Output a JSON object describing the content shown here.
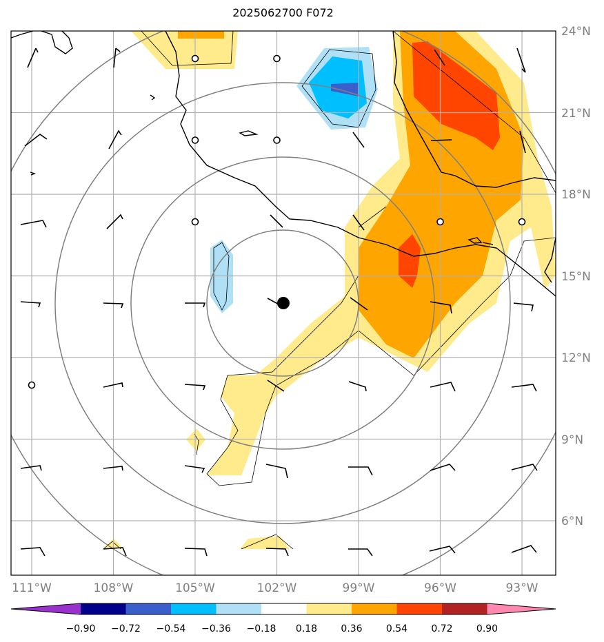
{
  "title": "2025062700 F072",
  "lat_labels": [
    "24°N",
    "21°N",
    "18°N",
    "15°N",
    "12°N",
    "9°N",
    "6°N"
  ],
  "lon_labels": [
    "111°W",
    "108°W",
    "105°W",
    "102°W",
    "99°W",
    "96°W",
    "93°W"
  ],
  "colorbar": {
    "ticks": [
      "−0.90",
      "−0.72",
      "−0.54",
      "−0.36",
      "−0.18",
      "0.18",
      "0.36",
      "0.54",
      "0.72",
      "0.90"
    ],
    "colors": [
      "#9932cc",
      "#00008b",
      "#3a5fcd",
      "#00bfff",
      "#b0e0f5",
      "#ffffff",
      "#ffeb8c",
      "#ffa500",
      "#ff4500",
      "#b22222",
      "#ff88b0"
    ]
  },
  "storm_center": {
    "lat": 14.0,
    "lon": -101.8
  },
  "map_extent": {
    "lon": [
      -111.8,
      -91.8
    ],
    "lat": [
      4.0,
      24.0
    ]
  }
}
